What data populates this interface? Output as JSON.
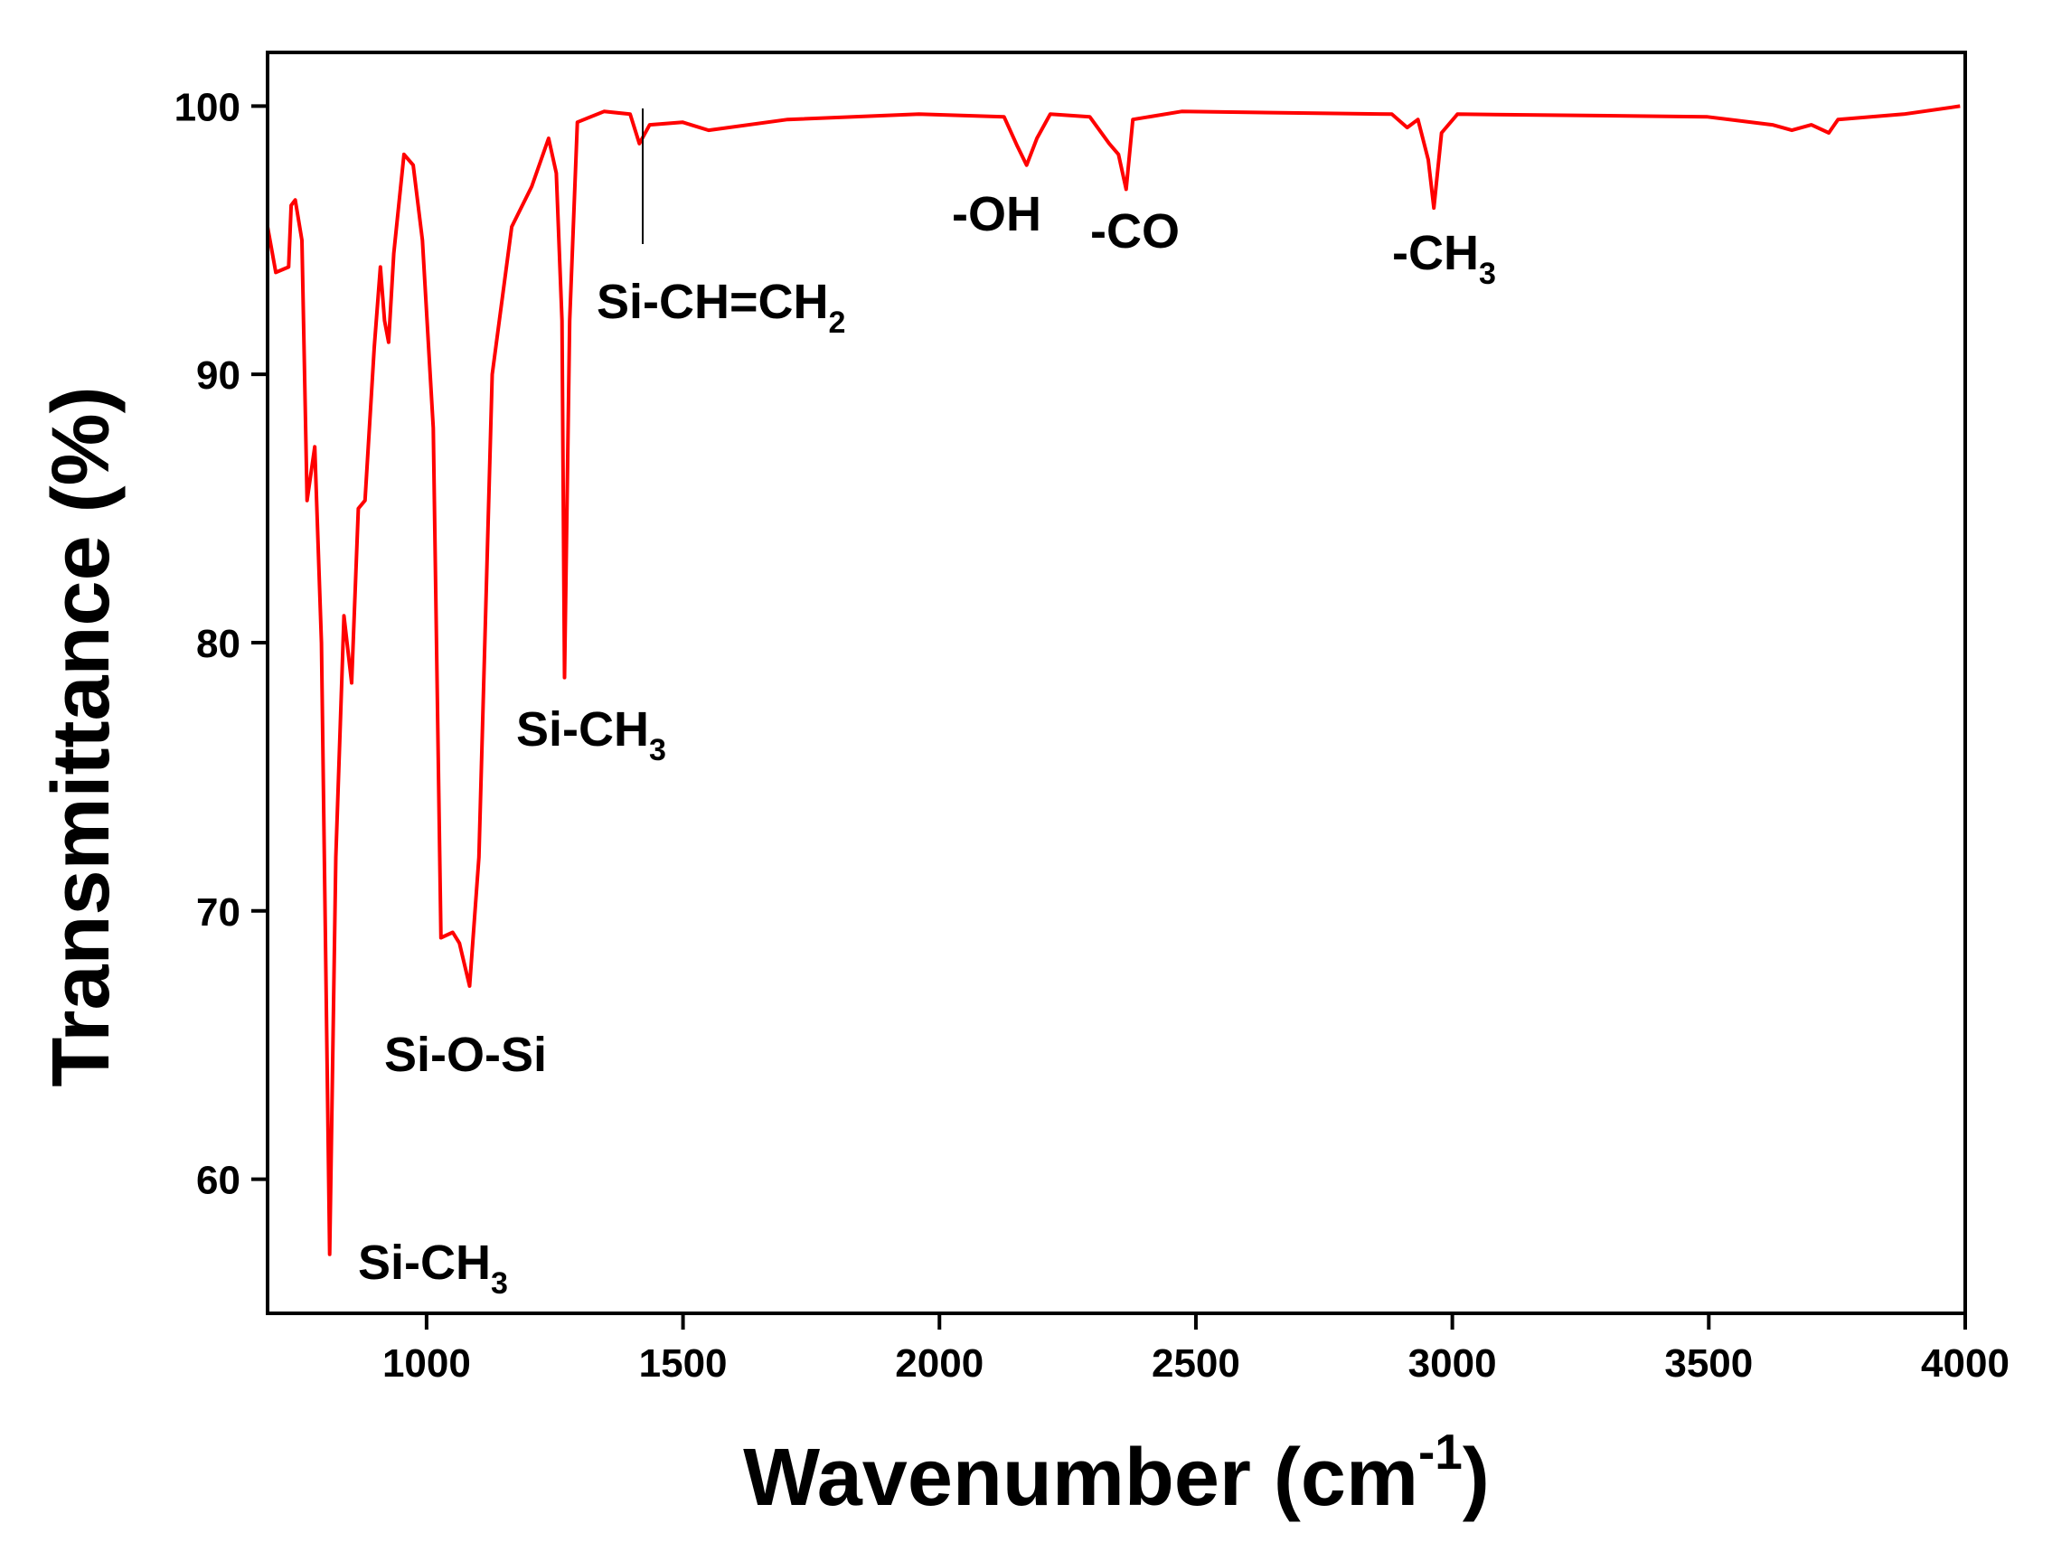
{
  "chart_data": {
    "type": "line",
    "x_label": {
      "text": "Wavenumber (cm",
      "sup": "-1",
      "after": ")"
    },
    "y_label": "Transmittance (%)",
    "color": "#ff0000",
    "xlim": [
      690,
      4000
    ],
    "ylim": [
      55,
      102
    ],
    "xticks": [
      1000,
      1500,
      2000,
      2500,
      3000,
      3500,
      4000
    ],
    "yticks": [
      60,
      70,
      80,
      90,
      100
    ],
    "x": [
      690,
      706,
      731,
      736,
      744,
      757,
      767,
      782,
      795,
      811,
      823,
      839,
      854,
      867,
      880,
      898,
      910,
      918,
      926,
      936,
      956,
      974,
      992,
      1013,
      1028,
      1051,
      1064,
      1084,
      1102,
      1128,
      1166,
      1205,
      1238,
      1253,
      1264,
      1269,
      1279,
      1294,
      1346,
      1397,
      1415,
      1435,
      1499,
      1550,
      1704,
      1960,
      2126,
      2152,
      2170,
      2190,
      2216,
      2293,
      2331,
      2349,
      2364,
      2377,
      2472,
      2882,
      2912,
      2933,
      2953,
      2964,
      2979,
      3010,
      3496,
      3624,
      3662,
      3700,
      3734,
      3752,
      3880,
      3990
    ],
    "values": [
      95.5,
      93.8,
      94,
      96.3,
      96.5,
      95,
      85.3,
      87.3,
      80,
      57.2,
      72,
      81,
      78.5,
      85,
      85.3,
      91,
      94,
      92,
      91.2,
      94.5,
      98.2,
      97.8,
      95,
      88,
      69,
      69.2,
      68.8,
      67.2,
      72,
      90,
      95.5,
      97,
      98.8,
      97.5,
      92,
      78.7,
      92,
      99.4,
      99.8,
      99.7,
      98.6,
      99.3,
      99.4,
      99.1,
      99.5,
      99.7,
      99.6,
      98.5,
      97.8,
      98.8,
      99.7,
      99.6,
      98.6,
      98.2,
      96.9,
      99.5,
      99.8,
      99.7,
      99.2,
      99.5,
      98,
      96.2,
      99,
      99.7,
      99.6,
      99.3,
      99.1,
      99.3,
      99,
      99.5,
      99.7,
      100
    ],
    "annotations": [
      {
        "text": "Si-CH",
        "sub": "3"
      },
      {
        "text": "Si-O-Si"
      },
      {
        "text": "Si-CH",
        "sub": "3"
      },
      {
        "text": "Si-CH=CH",
        "sub": "2"
      },
      {
        "text": "-OH"
      },
      {
        "text": "-CO"
      },
      {
        "text": "-CH",
        "sub": "3"
      }
    ]
  }
}
